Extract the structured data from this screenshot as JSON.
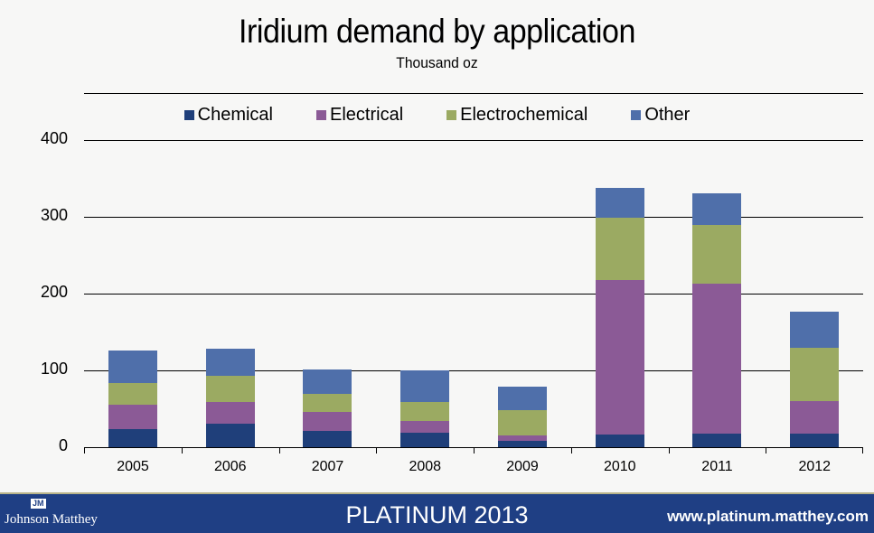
{
  "chart_data": {
    "type": "bar",
    "stacked": true,
    "title": "Iridium demand by application",
    "subtitle": "Thousand oz",
    "xlabel": "",
    "ylabel": "Thousand oz",
    "ylim": [
      0,
      400
    ],
    "yticks": [
      0,
      100,
      200,
      300,
      400
    ],
    "grid": true,
    "legend_position": "top",
    "categories": [
      "2005",
      "2006",
      "2007",
      "2008",
      "2009",
      "2010",
      "2011",
      "2012"
    ],
    "series": [
      {
        "name": "Chemical",
        "color": "#1f3f7a",
        "values": [
          24,
          31,
          21,
          19,
          8,
          16,
          18,
          18
        ]
      },
      {
        "name": "Electrical",
        "color": "#8b5a96",
        "values": [
          31,
          28,
          25,
          15,
          7,
          202,
          195,
          42
        ]
      },
      {
        "name": "Electrochemical",
        "color": "#9baa62",
        "values": [
          29,
          34,
          23,
          25,
          33,
          81,
          76,
          69
        ]
      },
      {
        "name": "Other",
        "color": "#4f6faa",
        "values": [
          42,
          35,
          32,
          41,
          31,
          39,
          42,
          47
        ]
      }
    ]
  },
  "footer": {
    "logo_mark": "JM",
    "logo_text": "Johnson Matthey",
    "title": "PLATINUM 2013",
    "url": "www.platinum.matthey.com"
  }
}
